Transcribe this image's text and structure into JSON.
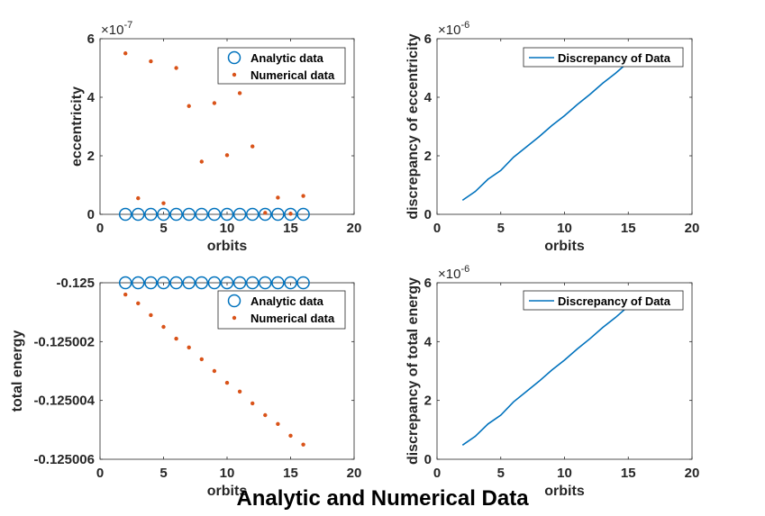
{
  "figure": {
    "suptitle": "Analytic and Numerical Data"
  },
  "colors": {
    "analytic": "#0072bd",
    "numerical": "#d95319",
    "axes": "#262626"
  },
  "chart_data": [
    {
      "type": "scatter",
      "xlabel": "orbits",
      "ylabel": "eccentricity",
      "exponent_label": "×10^-7",
      "xlim": [
        0,
        20
      ],
      "ylim": [
        0,
        6
      ],
      "xticks": [
        "0",
        "5",
        "10",
        "15",
        "20"
      ],
      "yticks": [
        "0",
        "2",
        "4",
        "6"
      ],
      "grid": false,
      "legend_position": "top-right",
      "series": [
        {
          "name": "Analytic data",
          "marker": "circle-open",
          "x": [
            2,
            3,
            4,
            5,
            6,
            7,
            8,
            9,
            10,
            11,
            12,
            13,
            14,
            15,
            16
          ],
          "y": [
            0,
            0,
            0,
            0,
            0,
            0,
            0,
            0,
            0,
            0,
            0,
            0,
            0,
            0,
            0
          ]
        },
        {
          "name": "Numerical data",
          "marker": "dot",
          "x": [
            2,
            3,
            4,
            5,
            6,
            7,
            8,
            9,
            10,
            11,
            12,
            13,
            14,
            15,
            16
          ],
          "y": [
            5.5,
            0.55,
            5.23,
            0.38,
            5.0,
            3.7,
            1.8,
            3.8,
            2.02,
            4.14,
            2.32,
            0.05,
            0.57,
            0.02,
            0.63
          ]
        }
      ]
    },
    {
      "type": "line",
      "xlabel": "orbits",
      "ylabel": "discrepancy of eccentricity",
      "exponent_label": "×10^-6",
      "xlim": [
        0,
        20
      ],
      "ylim": [
        0,
        6
      ],
      "xticks": [
        "0",
        "5",
        "10",
        "15",
        "20"
      ],
      "yticks": [
        "0",
        "2",
        "4",
        "6"
      ],
      "grid": false,
      "legend_position": "top-right",
      "series": [
        {
          "name": "Discrepancy of Data",
          "x": [
            2,
            3,
            4,
            5,
            6,
            7,
            8,
            9,
            10,
            11,
            12,
            13,
            14,
            15,
            16
          ],
          "y": [
            0.48,
            0.78,
            1.2,
            1.5,
            1.95,
            2.3,
            2.65,
            3.03,
            3.37,
            3.75,
            4.1,
            4.48,
            4.82,
            5.2,
            5.6
          ]
        }
      ]
    },
    {
      "type": "scatter",
      "xlabel": "orbits",
      "ylabel": "total energy",
      "xlim": [
        0,
        20
      ],
      "ylim": [
        -0.125006,
        -0.125
      ],
      "xticks": [
        "0",
        "5",
        "10",
        "15",
        "20"
      ],
      "yticks": [
        "-0.125006",
        "-0.125004",
        "-0.125002",
        "-0.125"
      ],
      "grid": false,
      "legend_position": "top-right",
      "series": [
        {
          "name": "Analytic data",
          "marker": "circle-open",
          "x": [
            2,
            3,
            4,
            5,
            6,
            7,
            8,
            9,
            10,
            11,
            12,
            13,
            14,
            15,
            16
          ],
          "y": [
            -0.125,
            -0.125,
            -0.125,
            -0.125,
            -0.125,
            -0.125,
            -0.125,
            -0.125,
            -0.125,
            -0.125,
            -0.125,
            -0.125,
            -0.125,
            -0.125,
            -0.125
          ]
        },
        {
          "name": "Numerical data",
          "marker": "dot",
          "x": [
            2,
            3,
            4,
            5,
            6,
            7,
            8,
            9,
            10,
            11,
            12,
            13,
            14,
            15,
            16
          ],
          "y": [
            -0.1250004,
            -0.1250007,
            -0.1250011,
            -0.1250015,
            -0.1250019,
            -0.1250022,
            -0.1250026,
            -0.125003,
            -0.1250034,
            -0.1250037,
            -0.1250041,
            -0.1250045,
            -0.1250048,
            -0.1250052,
            -0.1250055
          ]
        }
      ]
    },
    {
      "type": "line",
      "xlabel": "orbits",
      "ylabel": "discrepancy of total energy",
      "exponent_label": "×10^-6",
      "xlim": [
        0,
        20
      ],
      "ylim": [
        0,
        6
      ],
      "xticks": [
        "0",
        "5",
        "10",
        "15",
        "20"
      ],
      "yticks": [
        "0",
        "2",
        "4",
        "6"
      ],
      "grid": false,
      "legend_position": "top-right",
      "series": [
        {
          "name": "Discrepancy of Data",
          "x": [
            2,
            3,
            4,
            5,
            6,
            7,
            8,
            9,
            10,
            11,
            12,
            13,
            14,
            15,
            16
          ],
          "y": [
            0.48,
            0.78,
            1.2,
            1.5,
            1.95,
            2.3,
            2.65,
            3.03,
            3.37,
            3.75,
            4.1,
            4.48,
            4.82,
            5.2,
            5.6
          ]
        }
      ]
    }
  ]
}
